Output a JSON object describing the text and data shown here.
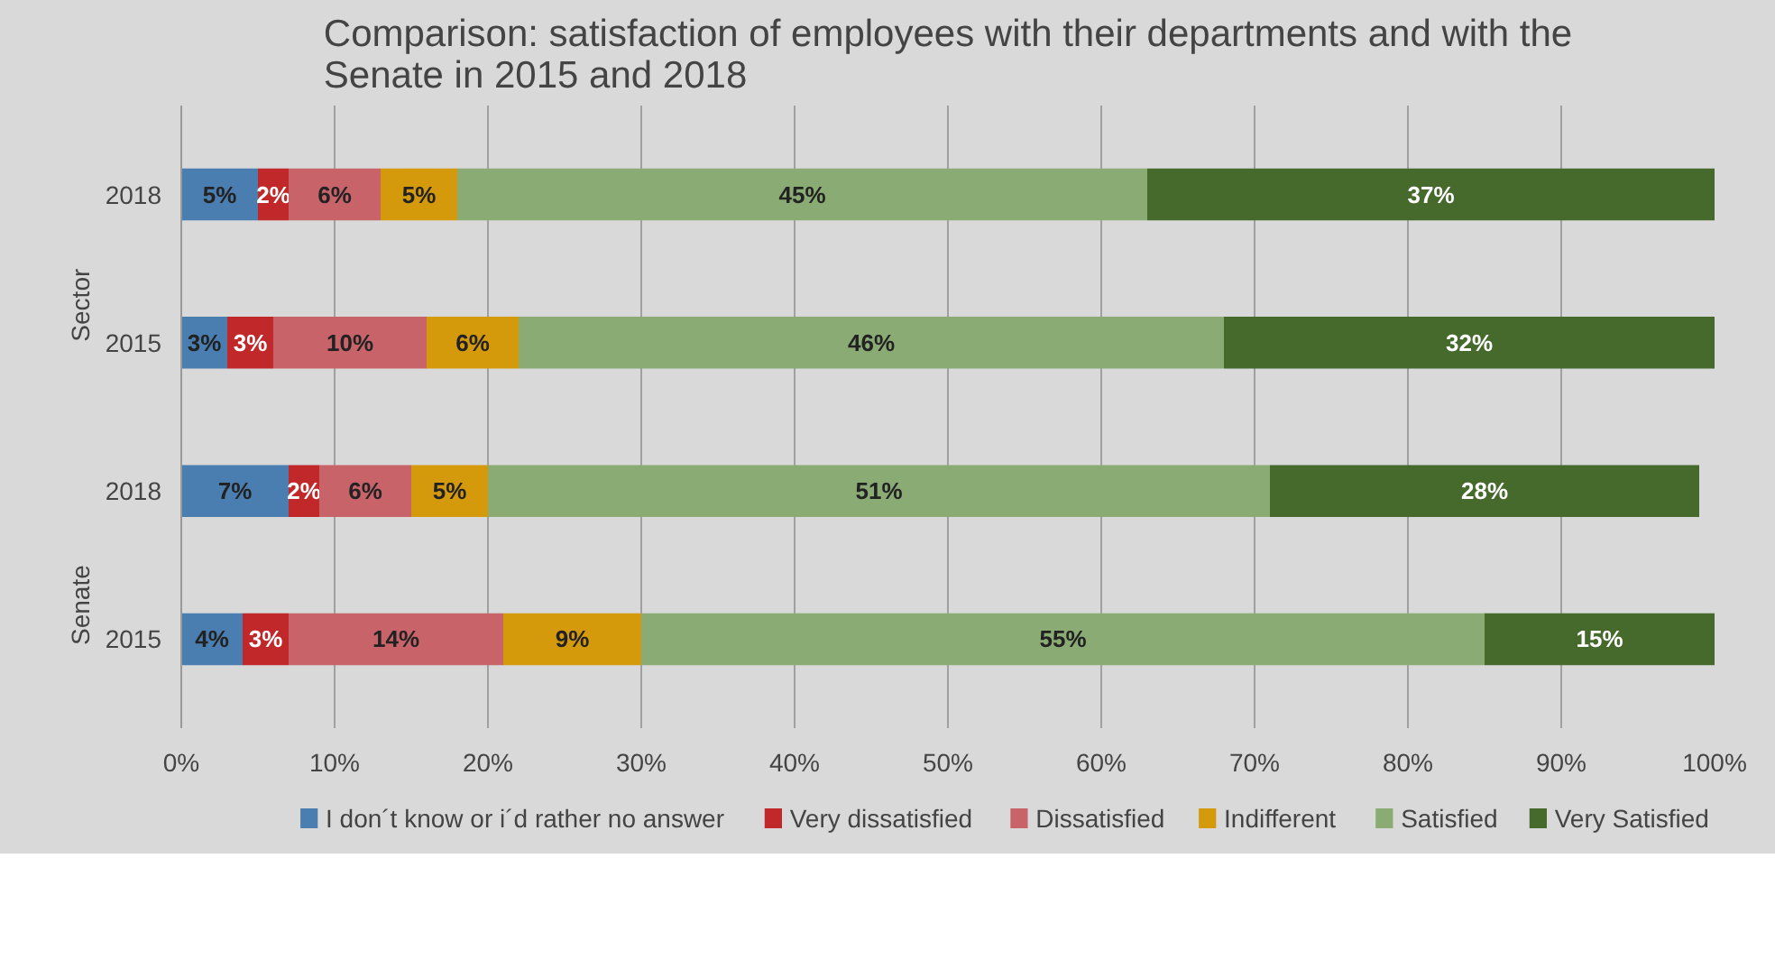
{
  "chart_data": {
    "type": "bar",
    "orientation": "horizontal",
    "stacked": true,
    "title": "Comparison: satisfaction of employees with their departments and with the Senate in 2015 and 2018",
    "categories": [
      "2018",
      "2015",
      "2018",
      "2015"
    ],
    "annotations": [
      "Sector",
      "Senate"
    ],
    "series": [
      {
        "name": "I don´t know or i´d rather no answer",
        "color": "#4a7eb0",
        "values": [
          5,
          3,
          7,
          4
        ],
        "value_labels": [
          "5%",
          "3%",
          "7%",
          "4%"
        ]
      },
      {
        "name": "Very dissatisfied",
        "color": "#c0282a",
        "values": [
          2,
          3,
          2,
          3
        ],
        "value_labels": [
          "2%",
          "3%",
          "2%",
          "3%"
        ]
      },
      {
        "name": "Dissatisfied",
        "color": "#c8636a",
        "values": [
          6,
          10,
          6,
          14
        ],
        "value_labels": [
          "6%",
          "10%",
          "6%",
          "14%"
        ]
      },
      {
        "name": "Indifferent",
        "color": "#d49a0c",
        "values": [
          5,
          6,
          5,
          9
        ],
        "value_labels": [
          "5%",
          "6%",
          "5%",
          "9%"
        ]
      },
      {
        "name": "Satisfied",
        "color": "#8aab74",
        "values": [
          45,
          46,
          51,
          55
        ],
        "value_labels": [
          "45%",
          "46%",
          "51%",
          "55%"
        ]
      },
      {
        "name": "Very Satisfied",
        "color": "#46692c",
        "values": [
          37,
          32,
          28,
          15
        ],
        "value_labels": [
          "37%",
          "32%",
          "28%",
          "15%"
        ]
      }
    ],
    "xlim": [
      0,
      100
    ],
    "xticks": [
      {
        "value": 0,
        "label": "0%"
      },
      {
        "value": 10,
        "label": "10%"
      },
      {
        "value": 20,
        "label": "20%"
      },
      {
        "value": 30,
        "label": "30%"
      },
      {
        "value": 40,
        "label": "40%"
      },
      {
        "value": 50,
        "label": "50%"
      },
      {
        "value": 60,
        "label": "60%"
      },
      {
        "value": 70,
        "label": "70%"
      },
      {
        "value": 80,
        "label": "80%"
      },
      {
        "value": 90,
        "label": "90%"
      },
      {
        "value": 100,
        "label": "100%"
      }
    ],
    "grid": "x",
    "legend": "bottom"
  }
}
